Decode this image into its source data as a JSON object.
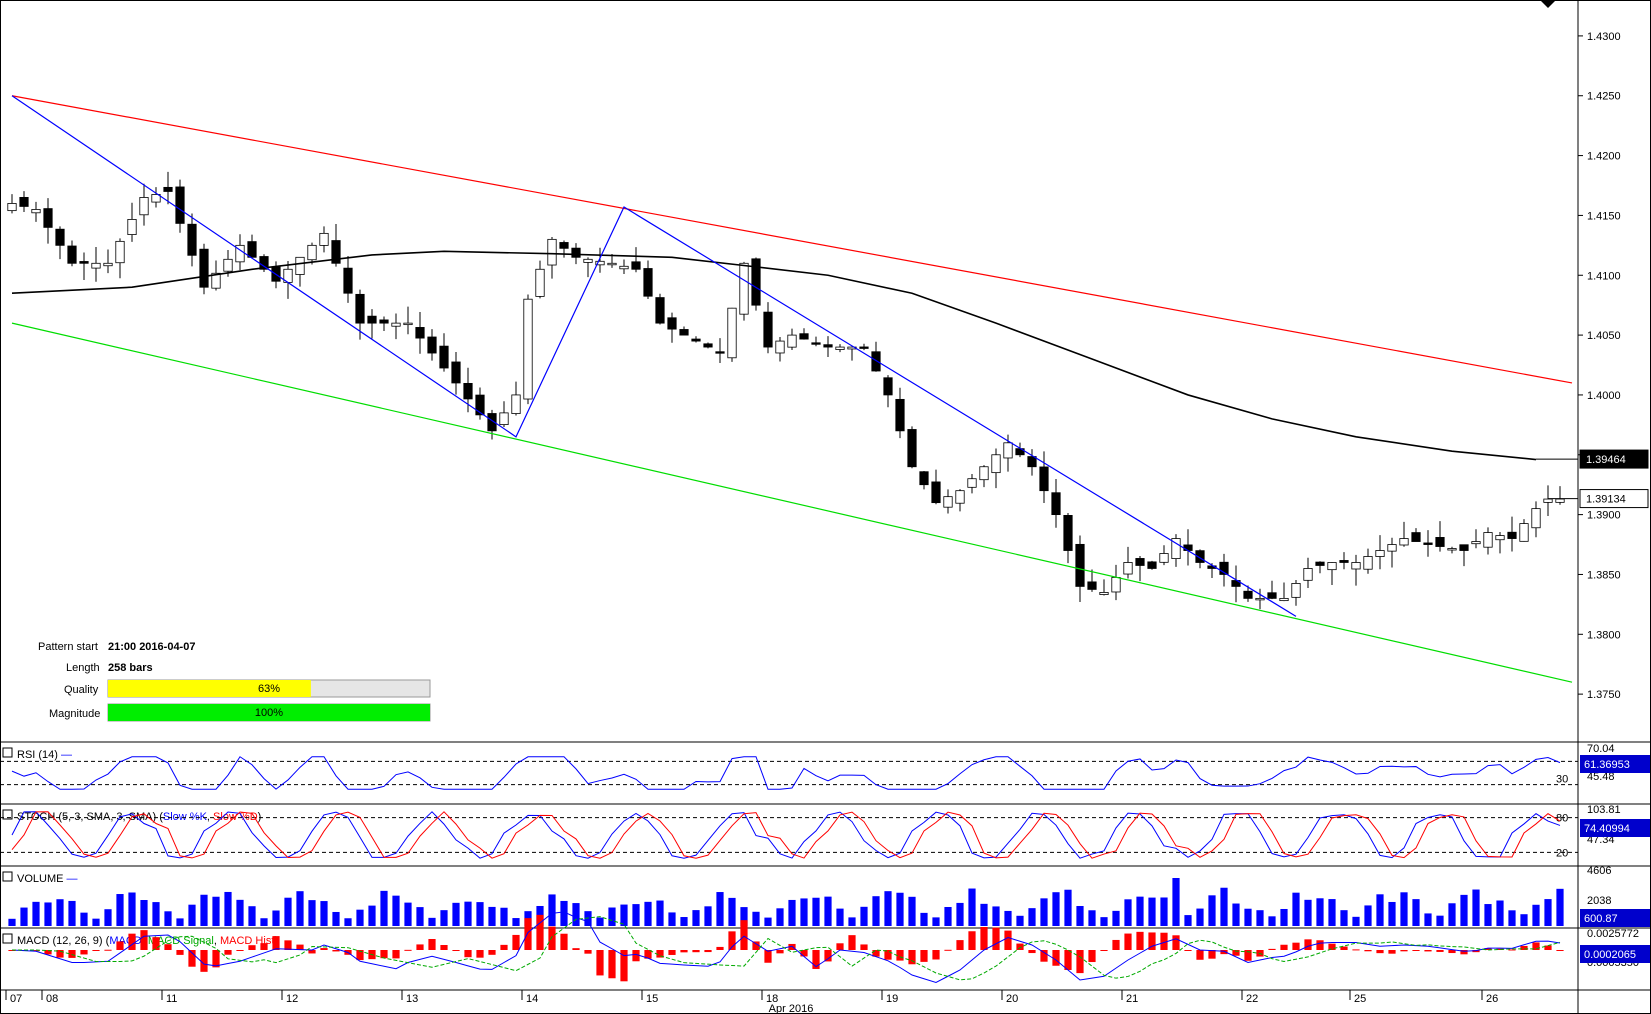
{
  "chart_data": {
    "type": "candlestick",
    "title": "",
    "xlabel": "Apr 2016",
    "ylabel": "",
    "ylim": [
      1.371,
      1.433
    ],
    "y_ticks": [
      "1.4300",
      "1.4250",
      "1.4200",
      "1.4150",
      "1.4100",
      "1.4050",
      "1.4000",
      "1.3950",
      "1.3900",
      "1.3850",
      "1.3800",
      "1.3750"
    ],
    "x_ticks": [
      "07",
      "08",
      "11",
      "12",
      "13",
      "14",
      "15",
      "18",
      "19",
      "20",
      "21",
      "22",
      "25",
      "26"
    ],
    "x_tick_pos": [
      0,
      3,
      13,
      23,
      33,
      43,
      53,
      63,
      73,
      83,
      93,
      103,
      112,
      123
    ],
    "n_bars": 130,
    "price_tags": {
      "ma": "1.39464",
      "last": "1.39134"
    },
    "ma_path": [
      [
        0,
        1.4085
      ],
      [
        10,
        1.409
      ],
      [
        20,
        1.4105
      ],
      [
        30,
        1.4117
      ],
      [
        36,
        1.412
      ],
      [
        45,
        1.4118
      ],
      [
        55,
        1.4115
      ],
      [
        62,
        1.4107
      ],
      [
        68,
        1.41
      ],
      [
        75,
        1.4085
      ],
      [
        82,
        1.406
      ],
      [
        90,
        1.403
      ],
      [
        98,
        1.4
      ],
      [
        105,
        1.398
      ],
      [
        112,
        1.3965
      ],
      [
        120,
        1.3953
      ],
      [
        127,
        1.3946
      ]
    ],
    "candle_keypoints": [
      [
        0,
        1.416
      ],
      [
        2,
        1.4155
      ],
      [
        5,
        1.411
      ],
      [
        8,
        1.411
      ],
      [
        11,
        1.4165
      ],
      [
        13,
        1.417
      ],
      [
        16,
        1.409
      ],
      [
        19,
        1.4125
      ],
      [
        22,
        1.4095
      ],
      [
        26,
        1.4135
      ],
      [
        29,
        1.406
      ],
      [
        33,
        1.406
      ],
      [
        37,
        1.401
      ],
      [
        40,
        1.397
      ],
      [
        42,
        1.4
      ],
      [
        43,
        1.408
      ],
      [
        45,
        1.413
      ],
      [
        47,
        1.4115
      ],
      [
        50,
        1.411
      ],
      [
        52,
        1.4105
      ],
      [
        54,
        1.406
      ],
      [
        57,
        1.4045
      ],
      [
        59,
        1.4035
      ],
      [
        61,
        1.411
      ],
      [
        63,
        1.404
      ],
      [
        65,
        1.405
      ],
      [
        68,
        1.404
      ],
      [
        71,
        1.404
      ],
      [
        73,
        1.4
      ],
      [
        75,
        1.394
      ],
      [
        77,
        1.391
      ],
      [
        79,
        1.392
      ],
      [
        81,
        1.394
      ],
      [
        83,
        1.396
      ],
      [
        85,
        1.394
      ],
      [
        87,
        1.39
      ],
      [
        89,
        1.384
      ],
      [
        91,
        1.3835
      ],
      [
        93,
        1.386
      ],
      [
        95,
        1.3855
      ],
      [
        97,
        1.388
      ],
      [
        99,
        1.386
      ],
      [
        101,
        1.385
      ],
      [
        103,
        1.383
      ],
      [
        106,
        1.383
      ],
      [
        108,
        1.3855
      ],
      [
        110,
        1.386
      ],
      [
        112,
        1.386
      ],
      [
        114,
        1.387
      ],
      [
        116,
        1.388
      ],
      [
        118,
        1.3875
      ],
      [
        121,
        1.387
      ],
      [
        123,
        1.3885
      ],
      [
        125,
        1.388
      ],
      [
        127,
        1.3905
      ],
      [
        128,
        1.3913
      ]
    ],
    "pattern_lines": {
      "red_resistance": [
        [
          0,
          1.425
        ],
        [
          130,
          1.401
        ]
      ],
      "green_support": [
        [
          0,
          1.406
        ],
        [
          130,
          1.376
        ]
      ],
      "blue_zigzag": [
        [
          0,
          1.425
        ],
        [
          42,
          1.3965
        ],
        [
          51,
          1.4157
        ],
        [
          107,
          1.3815
        ]
      ]
    },
    "pattern_info": {
      "pattern_start_label": "Pattern start",
      "pattern_start_value": "21:00 2016-04-07",
      "length_label": "Length",
      "length_value": "258 bars",
      "quality_label": "Quality",
      "quality_value": 63,
      "quality_text": "63%",
      "magnitude_label": "Magnitude",
      "magnitude_value": 100,
      "magnitude_text": "100%"
    },
    "indicators": {
      "rsi": {
        "label": "RSI (14)",
        "levels": [
          "30"
        ],
        "ticks": [
          "70.04",
          "45.48"
        ],
        "value_tag": "61.36953"
      },
      "stoch": {
        "label_prefix": "STOCH (5, 3, SMA, 3, SMA) (",
        "k_label": "Slow %K",
        "d_label": "Slow %D",
        "label_suffix": ")",
        "levels": [
          "80",
          "20"
        ],
        "ticks": [
          "103.81",
          "47.34"
        ],
        "value_tag": "74.40994"
      },
      "volume": {
        "label": "VOLUME",
        "ticks": [
          "4606",
          "2038"
        ],
        "value_tag": "600.87"
      },
      "macd": {
        "label_prefix": "MACD (12, 26, 9) (",
        "macd_label": "MACD",
        "signal_label": "MACD Signal",
        "hist_label": "MACD Hist",
        "label_suffix": ")",
        "ticks": [
          "0.0025772",
          "0.0005350"
        ],
        "value_tag": "0.0002065"
      }
    },
    "grid": false,
    "legend": "none"
  },
  "colors": {
    "up_candle": "#ffffff",
    "down_candle": "#000000",
    "red_line": "#ff0000",
    "green_line": "#00dd00",
    "blue_line": "#0000ff",
    "ma_line": "#000000",
    "quality_bar": "#ffff00",
    "magnitude_bar": "#00ee00",
    "tag_bg": "#0000cc"
  }
}
